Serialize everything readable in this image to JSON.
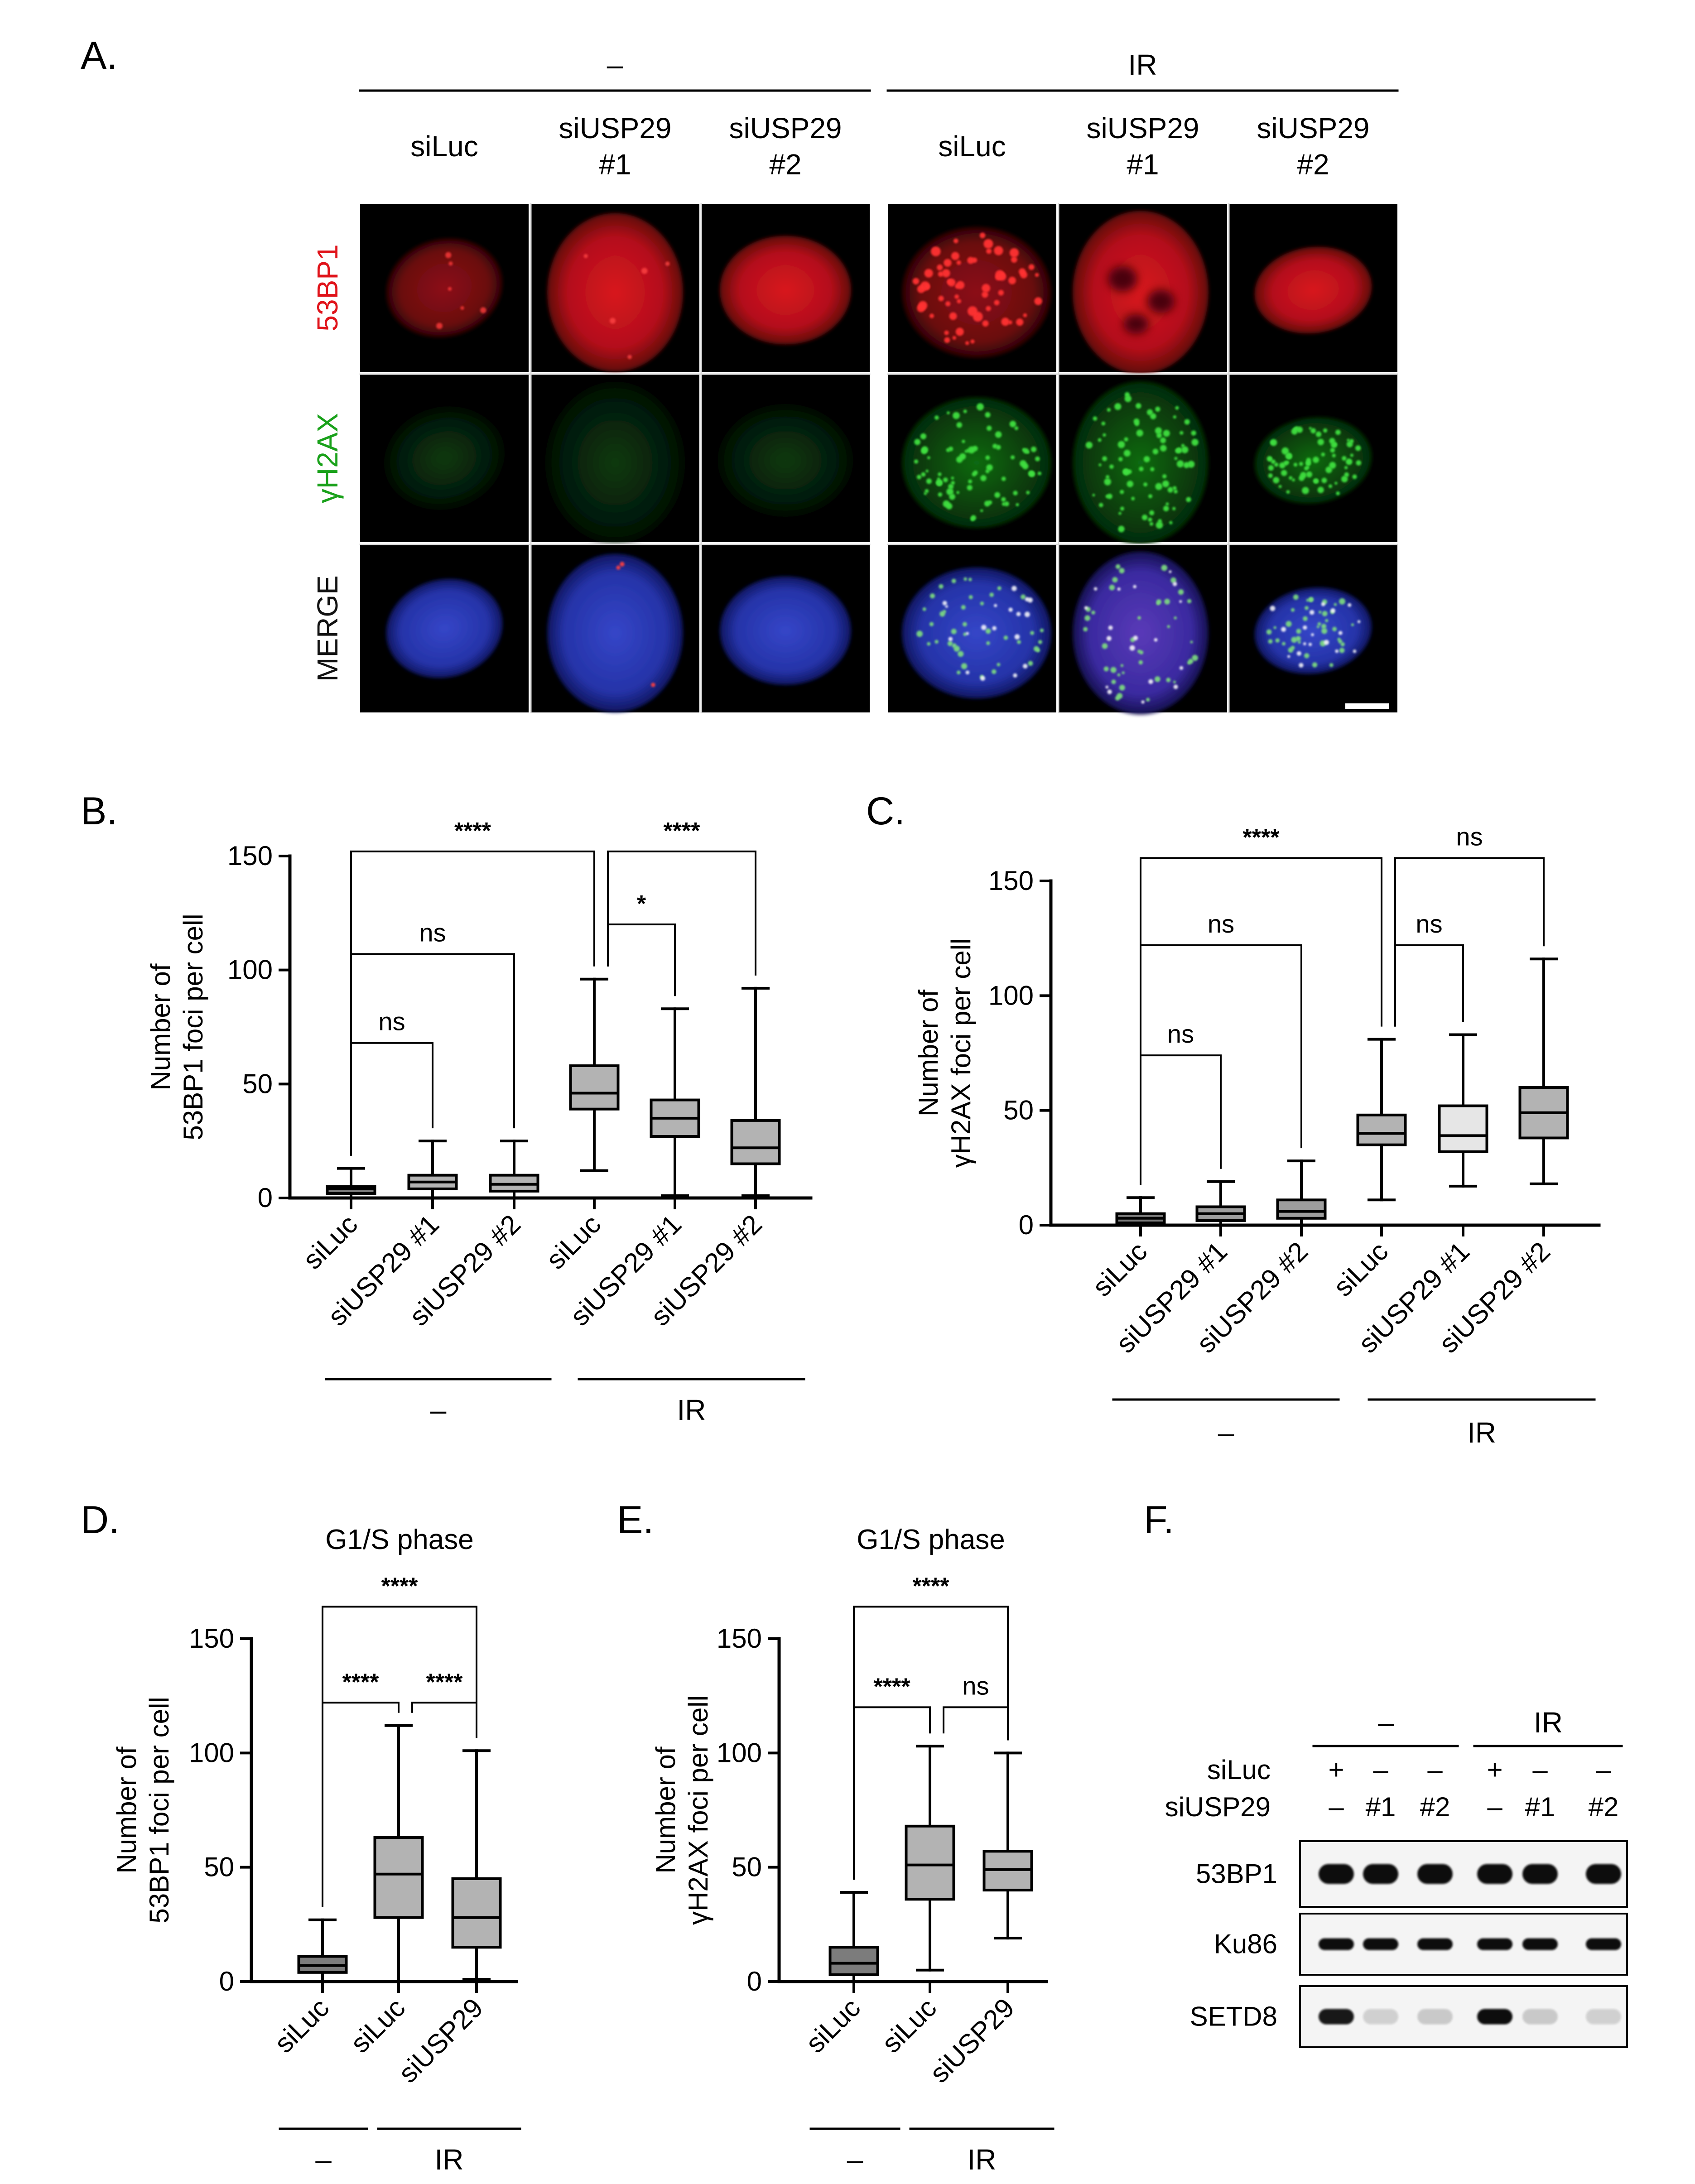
{
  "panel_a": {
    "label": "A.",
    "group_labels": [
      "–",
      "IR"
    ],
    "column_labels": [
      [
        "siLuc"
      ],
      [
        "siUSP29",
        "#1"
      ],
      [
        "siUSP29",
        "#2"
      ],
      [
        "siLuc"
      ],
      [
        "siUSP29",
        "#1"
      ],
      [
        "siUSP29",
        "#2"
      ]
    ],
    "row_labels": [
      "53BP1",
      "γH2AX",
      "MERGE"
    ],
    "row_colors": [
      "#e0131a",
      "#19a11a",
      "#111111"
    ]
  },
  "chart_data": [
    {
      "id": "B",
      "type": "box",
      "label": "B.",
      "title": "",
      "ylabel": [
        "Number of",
        "53BP1 foci per cell"
      ],
      "ylim": [
        0,
        150
      ],
      "yticks": [
        0,
        50,
        100,
        150
      ],
      "categories": [
        "siLuc",
        "siUSP29 #1",
        "siUSP29 #2",
        "siLuc",
        "siUSP29 #1",
        "siUSP29 #2"
      ],
      "groups": [
        {
          "label": "–",
          "categories": [
            0,
            1,
            2
          ]
        },
        {
          "label": "IR",
          "categories": [
            3,
            4,
            5
          ]
        }
      ],
      "boxes": [
        {
          "min": 0,
          "q1": 2,
          "median": 4,
          "q3": 5,
          "max": 13
        },
        {
          "min": 0,
          "q1": 4,
          "median": 7,
          "q3": 10,
          "max": 25
        },
        {
          "min": 0,
          "q1": 3,
          "median": 6,
          "q3": 10,
          "max": 25
        },
        {
          "min": 12,
          "q1": 39,
          "median": 46,
          "q3": 58,
          "max": 96
        },
        {
          "min": 1,
          "q1": 27,
          "median": 35,
          "q3": 43,
          "max": 83
        },
        {
          "min": 1,
          "q1": 15,
          "median": 22,
          "q3": 34,
          "max": 92
        }
      ],
      "box_colors": [
        "#7c7c7c",
        "#b3b3b3",
        "#b3b3b3",
        "#b3b3b3",
        "#b3b3b3",
        "#b3b3b3"
      ],
      "comparisons": [
        {
          "from": 0,
          "to": 1,
          "label": "ns",
          "y": 68
        },
        {
          "from": 0,
          "to": 2,
          "label": "ns",
          "y": 107
        },
        {
          "from": 0,
          "to": 3,
          "label": "****",
          "y": 152
        },
        {
          "from": 3,
          "to": 4,
          "label": "*",
          "y": 120
        },
        {
          "from": 3,
          "to": 5,
          "label": "****",
          "y": 152
        }
      ]
    },
    {
      "id": "C",
      "type": "box",
      "label": "C.",
      "title": "",
      "ylabel": [
        "Number of",
        "γH2AX foci per cell"
      ],
      "ylim": [
        0,
        150
      ],
      "yticks": [
        0,
        50,
        100,
        150
      ],
      "categories": [
        "siLuc",
        "siUSP29 #1",
        "siUSP29 #2",
        "siLuc",
        "siUSP29 #1",
        "siUSP29 #2"
      ],
      "groups": [
        {
          "label": "–",
          "categories": [
            0,
            1,
            2
          ]
        },
        {
          "label": "IR",
          "categories": [
            3,
            4,
            5
          ]
        }
      ],
      "boxes": [
        {
          "min": 0,
          "q1": 1,
          "median": 3,
          "q3": 5,
          "max": 12
        },
        {
          "min": 0,
          "q1": 2,
          "median": 5,
          "q3": 8,
          "max": 19
        },
        {
          "min": 0,
          "q1": 3,
          "median": 6,
          "q3": 11,
          "max": 28
        },
        {
          "min": 11,
          "q1": 35,
          "median": 40,
          "q3": 48,
          "max": 81
        },
        {
          "min": 17,
          "q1": 32,
          "median": 39,
          "q3": 52,
          "max": 83
        },
        {
          "min": 18,
          "q1": 38,
          "median": 49,
          "q3": 60,
          "max": 116
        }
      ],
      "box_colors": [
        "#7c7c7c",
        "#9e9e9e",
        "#9e9e9e",
        "#b3b3b3",
        "#e6e6e6",
        "#b3b3b3"
      ],
      "comparisons": [
        {
          "from": 0,
          "to": 1,
          "label": "ns",
          "y": 74
        },
        {
          "from": 0,
          "to": 2,
          "label": "ns",
          "y": 122
        },
        {
          "from": 0,
          "to": 3,
          "label": "****",
          "y": 160
        },
        {
          "from": 3,
          "to": 4,
          "label": "ns",
          "y": 122
        },
        {
          "from": 3,
          "to": 5,
          "label": "ns",
          "y": 160
        }
      ]
    },
    {
      "id": "D",
      "type": "box",
      "label": "D.",
      "title": "G1/S phase",
      "ylabel": [
        "Number of",
        "53BP1 foci per cell"
      ],
      "ylim": [
        0,
        150
      ],
      "yticks": [
        0,
        50,
        100,
        150
      ],
      "categories": [
        "siLuc",
        "siLuc",
        "siUSP29"
      ],
      "groups": [
        {
          "label": "–",
          "categories": [
            0
          ]
        },
        {
          "label": "IR",
          "categories": [
            1,
            2
          ]
        }
      ],
      "boxes": [
        {
          "min": 0,
          "q1": 4,
          "median": 7,
          "q3": 11,
          "max": 27
        },
        {
          "min": 0,
          "q1": 28,
          "median": 47,
          "q3": 63,
          "max": 112
        },
        {
          "min": 1,
          "q1": 15,
          "median": 28,
          "q3": 45,
          "max": 101
        }
      ],
      "box_colors": [
        "#7c7c7c",
        "#b3b3b3",
        "#b3b3b3"
      ],
      "comparisons": [
        {
          "from": 0,
          "to": 1,
          "label": "****",
          "y": 122
        },
        {
          "from": 1,
          "to": 2,
          "label": "****",
          "y": 122
        },
        {
          "from": 0,
          "to": 2,
          "label": "****",
          "y": 164
        }
      ]
    },
    {
      "id": "E",
      "type": "box",
      "label": "E.",
      "title": "G1/S phase",
      "ylabel": [
        "Number of",
        "γH2AX foci per cell"
      ],
      "ylim": [
        0,
        150
      ],
      "yticks": [
        0,
        50,
        100,
        150
      ],
      "categories": [
        "siLuc",
        "siLuc",
        "siUSP29"
      ],
      "groups": [
        {
          "label": "–",
          "categories": [
            0
          ]
        },
        {
          "label": "IR",
          "categories": [
            1,
            2
          ]
        }
      ],
      "boxes": [
        {
          "min": 0,
          "q1": 3,
          "median": 8,
          "q3": 15,
          "max": 39
        },
        {
          "min": 5,
          "q1": 36,
          "median": 51,
          "q3": 68,
          "max": 103
        },
        {
          "min": 19,
          "q1": 40,
          "median": 49,
          "q3": 57,
          "max": 100
        }
      ],
      "box_colors": [
        "#7c7c7c",
        "#b3b3b3",
        "#b3b3b3"
      ],
      "comparisons": [
        {
          "from": 0,
          "to": 1,
          "label": "****",
          "y": 120
        },
        {
          "from": 1,
          "to": 2,
          "label": "ns",
          "y": 120
        },
        {
          "from": 0,
          "to": 2,
          "label": "****",
          "y": 164
        }
      ]
    }
  ],
  "panel_f": {
    "label": "F.",
    "group_labels": [
      "–",
      "IR"
    ],
    "row_headers": [
      "siLuc",
      "siUSP29"
    ],
    "siLuc": [
      "+",
      "–",
      "–",
      "+",
      "–",
      "–"
    ],
    "siUSP29": [
      "–",
      "#1",
      "#2",
      "–",
      "#1",
      "#2"
    ],
    "blots": [
      {
        "name": "53BP1",
        "intensity": [
          1,
          1,
          1,
          1,
          1,
          1
        ]
      },
      {
        "name": "Ku86",
        "intensity": [
          1,
          1,
          1,
          1,
          1,
          1
        ]
      },
      {
        "name": "SETD8",
        "intensity": [
          0.95,
          0.15,
          0.18,
          1,
          0.18,
          0.15
        ]
      }
    ]
  }
}
